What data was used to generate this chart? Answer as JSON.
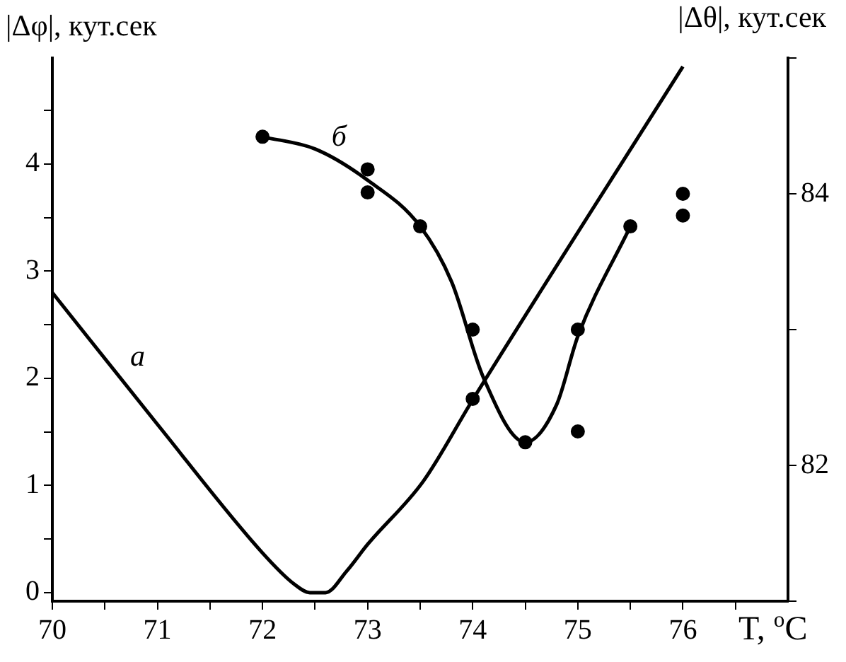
{
  "chart_data": {
    "type": "line",
    "xlabel": "T, $^{o}$C",
    "ylabel": "|Δφ|, кут.сек",
    "y2label": "|Δθ|, кут.сек",
    "xlim": [
      70,
      77
    ],
    "xticks": [
      70,
      {
        "value": 70.5,
        "label": null
      },
      71,
      {
        "value": 71.5,
        "label": null
      },
      72,
      {
        "value": 72.5,
        "label": null
      },
      73,
      {
        "value": 73.5,
        "label": null
      },
      74,
      {
        "value": 74.5,
        "label": null
      },
      75,
      {
        "value": 75.5,
        "label": null
      },
      76,
      {
        "value": 76.5,
        "label": null
      }
    ],
    "ylim": [
      -0.08,
      4.99
    ],
    "yticks": [
      0,
      {
        "value": 0.5,
        "label": null
      },
      1,
      {
        "value": 1.5,
        "label": null
      },
      2,
      {
        "value": 2.5,
        "label": null
      },
      3,
      {
        "value": 3.5,
        "label": null
      },
      4,
      {
        "value": 4.5,
        "label": null
      }
    ],
    "y2lim": [
      81,
      85
    ],
    "y2ticks": [
      {
        "value": 81,
        "label": null
      },
      82,
      {
        "value": 83,
        "label": null
      },
      84,
      {
        "value": 85,
        "label": null
      }
    ],
    "series": [
      {
        "type": "line",
        "name": "а",
        "color": "#000000",
        "x": [
          70,
          71,
          72,
          72.3,
          72.45,
          72.6,
          72.8,
          73,
          73.53,
          74,
          76
        ],
        "values": [
          2.8,
          1.57,
          0.37,
          0.08,
          0,
          0,
          0.2,
          0.45,
          1.04,
          1.8,
          4.91
        ]
      },
      {
        "type": "line",
        "name": "б",
        "axis": "y2",
        "color": "#000000",
        "x": [
          72,
          72.5,
          73,
          73.5,
          73.8,
          74.1,
          74.5,
          74.8,
          75,
          75.5
        ],
        "values": [
          84.42,
          84.33,
          84.1,
          83.76,
          83.35,
          82.65,
          82.17,
          82.45,
          82.95,
          83.76
        ]
      },
      {
        "type": "scatter",
        "axis": "y2",
        "color": "#000000",
        "marker": "circle",
        "x": [
          72,
          73,
          73,
          73.5,
          74,
          74,
          74.5,
          75,
          75,
          75.5,
          76,
          76
        ],
        "values": [
          84.42,
          84.18,
          84.01,
          83.76,
          83.0,
          82.49,
          82.17,
          83.0,
          82.25,
          83.76,
          84.0,
          83.84
        ]
      }
    ],
    "grid": false
  }
}
